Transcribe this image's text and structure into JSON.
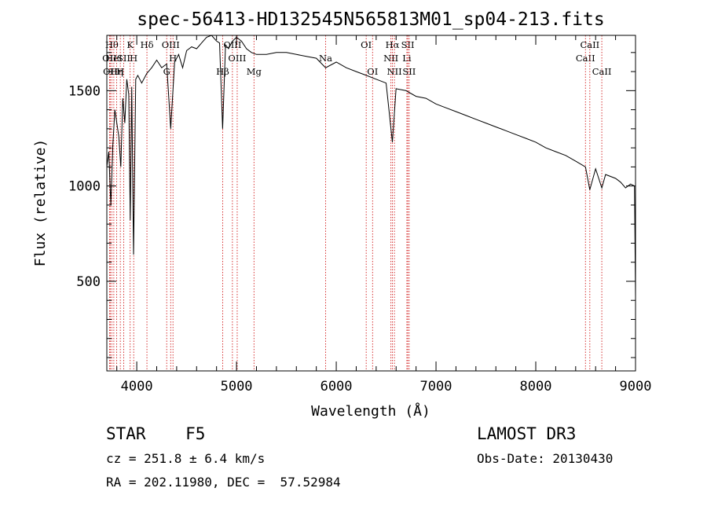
{
  "chart_data": {
    "type": "line",
    "title": "spec-56413-HD132545N565813M01_sp04-213.fits",
    "xlabel": "Wavelength (Å)",
    "ylabel": "Flux (relative)",
    "xlim": [
      3700,
      9000
    ],
    "ylim": [
      30,
      1790
    ],
    "xticks": [
      4000,
      5000,
      6000,
      7000,
      8000,
      9000
    ],
    "yticks": [
      500,
      1000,
      1500
    ],
    "series": [
      {
        "name": "spectrum",
        "x": [
          3700,
          3720,
          3740,
          3760,
          3780,
          3800,
          3820,
          3840,
          3860,
          3880,
          3900,
          3920,
          3935,
          3950,
          3968,
          3990,
          4010,
          4050,
          4100,
          4150,
          4200,
          4250,
          4300,
          4340,
          4380,
          4420,
          4460,
          4500,
          4550,
          4600,
          4650,
          4700,
          4750,
          4800,
          4830,
          4861,
          4890,
          4920,
          4960,
          5000,
          5050,
          5100,
          5150,
          5200,
          5300,
          5400,
          5500,
          5600,
          5700,
          5800,
          5893,
          6000,
          6100,
          6200,
          6300,
          6400,
          6500,
          6563,
          6600,
          6700,
          6800,
          6900,
          7000,
          7100,
          7200,
          7300,
          7400,
          7500,
          7600,
          7650,
          7700,
          7800,
          7900,
          8000,
          8100,
          8200,
          8300,
          8400,
          8498,
          8542,
          8600,
          8662,
          8700,
          8800,
          8850,
          8900,
          8950,
          8990,
          9000
        ],
        "y": [
          1100,
          1180,
          900,
          1210,
          1400,
          1330,
          1260,
          1100,
          1460,
          1330,
          1560,
          1480,
          820,
          1520,
          640,
          1560,
          1580,
          1540,
          1590,
          1620,
          1660,
          1620,
          1640,
          1300,
          1650,
          1690,
          1620,
          1710,
          1730,
          1720,
          1750,
          1780,
          1790,
          1760,
          1750,
          1300,
          1740,
          1720,
          1760,
          1780,
          1760,
          1720,
          1700,
          1690,
          1690,
          1700,
          1700,
          1690,
          1680,
          1670,
          1620,
          1650,
          1620,
          1600,
          1580,
          1560,
          1540,
          1230,
          1510,
          1500,
          1470,
          1460,
          1430,
          1410,
          1390,
          1370,
          1350,
          1330,
          1310,
          1300,
          1290,
          1270,
          1250,
          1230,
          1200,
          1180,
          1160,
          1130,
          1100,
          980,
          1090,
          990,
          1060,
          1040,
          1020,
          990,
          1010,
          1000,
          420
        ]
      }
    ],
    "line_markers": [
      {
        "wavelength": 3727,
        "label": "OII",
        "row": 2
      },
      {
        "wavelength": 3735,
        "label": "OII",
        "row": 3
      },
      {
        "wavelength": 3750,
        "label": "Hθ",
        "row": 1
      },
      {
        "wavelength": 3770,
        "label": "HeI",
        "row": 2
      },
      {
        "wavelength": 3798,
        "label": "Hη",
        "row": 3
      },
      {
        "wavelength": 3835,
        "label": "H",
        "row": 3
      },
      {
        "wavelength": 3869,
        "label": "SII",
        "row": 2
      },
      {
        "wavelength": 3934,
        "label": "K",
        "row": 1
      },
      {
        "wavelength": 3969,
        "label": "H",
        "row": 2
      },
      {
        "wavelength": 4102,
        "label": "Hδ",
        "row": 1
      },
      {
        "wavelength": 4300,
        "label": "G",
        "row": 3
      },
      {
        "wavelength": 4340,
        "label": "OIII",
        "row": 1
      },
      {
        "wavelength": 4363,
        "label": "H",
        "row": 2
      },
      {
        "wavelength": 4861,
        "label": "Hβ",
        "row": 3
      },
      {
        "wavelength": 4959,
        "label": "OIII",
        "row": 1
      },
      {
        "wavelength": 5007,
        "label": "OIII",
        "row": 2
      },
      {
        "wavelength": 5175,
        "label": "Mg",
        "row": 3
      },
      {
        "wavelength": 5893,
        "label": "Na",
        "row": 2
      },
      {
        "wavelength": 6300,
        "label": "OI",
        "row": 1
      },
      {
        "wavelength": 6364,
        "label": "OI",
        "row": 3
      },
      {
        "wavelength": 6548,
        "label": "NII",
        "row": 2
      },
      {
        "wavelength": 6563,
        "label": "Hα",
        "row": 1
      },
      {
        "wavelength": 6583,
        "label": "NII",
        "row": 3
      },
      {
        "wavelength": 6708,
        "label": "Li",
        "row": 2
      },
      {
        "wavelength": 6717,
        "label": "SII",
        "row": 1
      },
      {
        "wavelength": 6731,
        "label": "SII",
        "row": 3
      },
      {
        "wavelength": 8498,
        "label": "CaII",
        "row": 2
      },
      {
        "wavelength": 8542,
        "label": "CaII",
        "row": 1
      },
      {
        "wavelength": 8662,
        "label": "CaII",
        "row": 3
      }
    ],
    "colors": {
      "spectrum": "#000000",
      "markers": "#cc0000",
      "axes": "#000000"
    }
  },
  "info": {
    "class": "STAR    F5",
    "survey": "LAMOST DR3",
    "cz": "cz = 251.8 ± 6.4 km/s",
    "obs_date": "Obs-Date: 20130430",
    "coords": "RA = 202.11980, DEC =  57.52984"
  }
}
